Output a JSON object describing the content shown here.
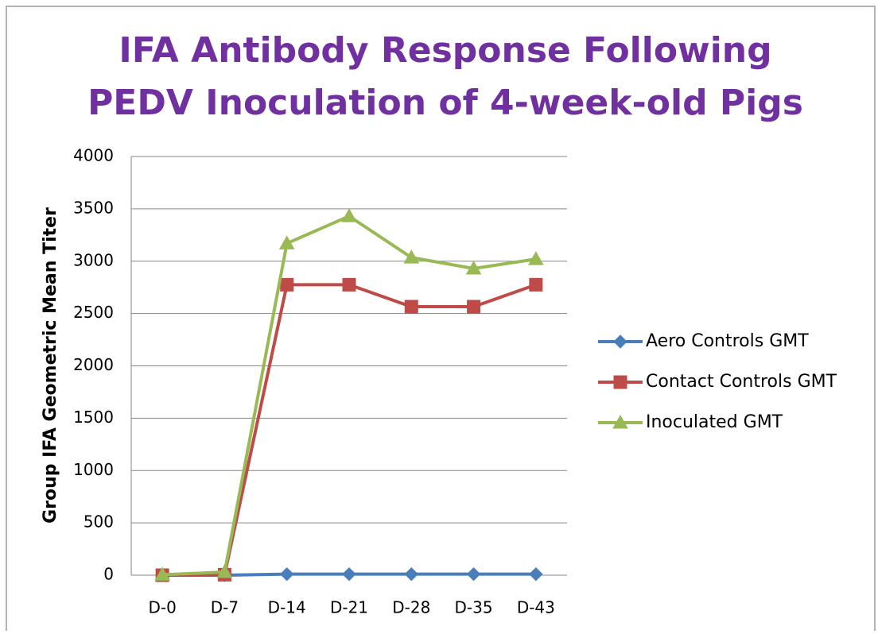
{
  "chart_data": {
    "type": "line",
    "title": [
      "IFA Antibody Response Following",
      "PEDV Inoculation of 4-week-old Pigs"
    ],
    "y_label": "Group IFA Geometric Mean Titer",
    "categories": [
      "D-0",
      "D-7",
      "D-14",
      "D-21",
      "D-28",
      "D-35",
      "D-43"
    ],
    "series": [
      {
        "name": "Aero Controls GMT",
        "color": "#4a7ebb",
        "marker": "diamond",
        "values": [
          0,
          0,
          10,
          10,
          10,
          10,
          10
        ]
      },
      {
        "name": "Contact Controls GMT",
        "color": "#be4b48",
        "marker": "square",
        "values": [
          0,
          5,
          2775,
          2775,
          2565,
          2565,
          2775
        ]
      },
      {
        "name": "Inoculated GMT",
        "color": "#98b954",
        "marker": "triangle",
        "values": [
          5,
          30,
          3170,
          3430,
          3035,
          2930,
          3020
        ]
      }
    ],
    "ylim": [
      0,
      4000
    ],
    "yticks": [
      0,
      500,
      1000,
      1500,
      2000,
      2500,
      3000,
      3500,
      4000
    ],
    "grid": true,
    "legend": "right"
  }
}
